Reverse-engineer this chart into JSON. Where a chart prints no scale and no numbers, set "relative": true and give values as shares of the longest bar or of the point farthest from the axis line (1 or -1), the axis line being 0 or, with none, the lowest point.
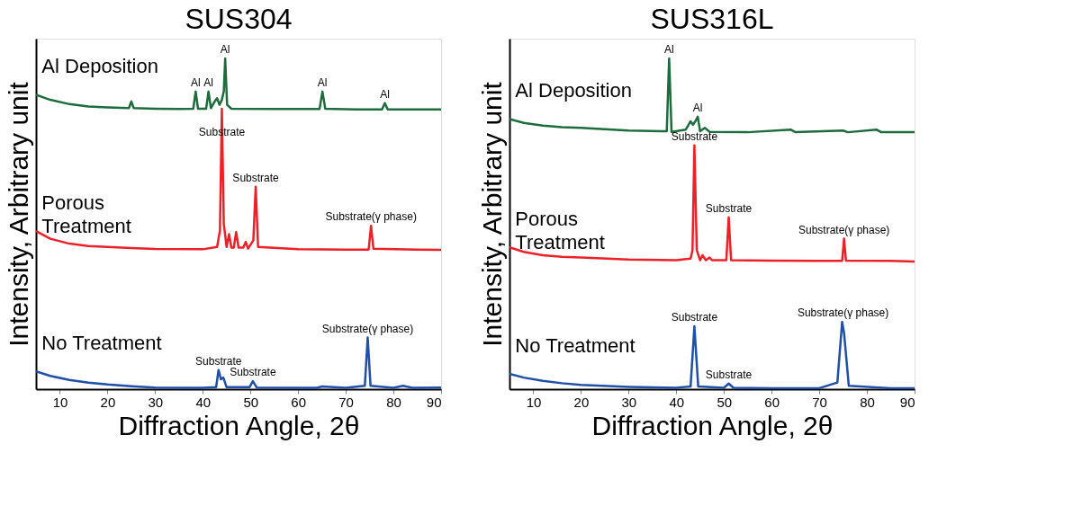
{
  "chart_data": [
    {
      "type": "line",
      "title": "SUS304",
      "xlabel": "Diffraction Angle, 2θ",
      "ylabel": "Intensity, Arbitrary unit",
      "relative": true,
      "xlim": [
        5,
        90
      ],
      "xticks": [
        10,
        20,
        30,
        40,
        50,
        60,
        70,
        80,
        90
      ],
      "grid": false,
      "legend": false,
      "marker": "none",
      "line_style": "solid",
      "series": [
        {
          "name": "Al Deposition",
          "color": "#1e6b3c",
          "x": [
            5,
            8,
            12,
            16,
            20,
            24.5,
            25,
            25.5,
            30,
            35,
            38,
            38.5,
            39,
            40.7,
            41.2,
            41.7,
            42.5,
            43,
            43.5,
            44,
            44.4,
            44.7,
            45.1,
            46,
            55,
            64.5,
            65.1,
            65.7,
            72,
            77.6,
            78.2,
            78.8,
            85,
            90
          ],
          "values": [
            0.89,
            0.875,
            0.862,
            0.855,
            0.852,
            0.85,
            0.87,
            0.85,
            0.848,
            0.847,
            0.848,
            0.9,
            0.848,
            0.848,
            0.9,
            0.85,
            0.87,
            0.88,
            0.86,
            0.875,
            0.9,
            1.0,
            0.86,
            0.848,
            0.847,
            0.847,
            0.9,
            0.848,
            0.846,
            0.846,
            0.865,
            0.846,
            0.846,
            0.846
          ]
        },
        {
          "name": "Porous\nTreatment",
          "color": "#ee2027",
          "x": [
            5,
            8,
            12,
            16,
            20,
            25,
            30,
            40,
            43,
            43.6,
            44,
            44.4,
            45,
            45.5,
            46,
            46.5,
            47,
            47.5,
            48.5,
            49,
            49.5,
            50.6,
            51.1,
            51.6,
            60,
            70,
            74.8,
            75.3,
            75.8,
            85,
            90
          ],
          "values": [
            0.478,
            0.455,
            0.44,
            0.433,
            0.43,
            0.427,
            0.424,
            0.423,
            0.43,
            0.48,
            0.848,
            0.5,
            0.43,
            0.469,
            0.428,
            0.428,
            0.475,
            0.428,
            0.428,
            0.445,
            0.425,
            0.45,
            0.612,
            0.43,
            0.423,
            0.422,
            0.422,
            0.494,
            0.425,
            0.422,
            0.421
          ]
        },
        {
          "name": "No Treatment",
          "color": "#1f4fa8",
          "x": [
            5,
            8,
            12,
            16,
            20,
            25,
            30,
            40,
            42.8,
            43.3,
            43.8,
            44.3,
            45,
            49.8,
            50.5,
            51.3,
            60,
            64,
            65,
            70,
            74,
            74.6,
            75.2,
            80,
            82,
            84,
            90
          ],
          "values": [
            0.054,
            0.04,
            0.028,
            0.02,
            0.014,
            0.009,
            0.005,
            0.004,
            0.006,
            0.058,
            0.03,
            0.035,
            0.006,
            0.006,
            0.024,
            0.005,
            0.004,
            0.004,
            0.008,
            0.004,
            0.01,
            0.156,
            0.01,
            0.004,
            0.01,
            0.004,
            0.005
          ]
        }
      ],
      "annotations": [
        {
          "text": "Al",
          "x": 38.5,
          "y": 0.9
        },
        {
          "text": "Al",
          "x": 41.2,
          "y": 0.9
        },
        {
          "text": "Al",
          "x": 44.7,
          "y": 1.0
        },
        {
          "text": "Al",
          "x": 65.1,
          "y": 0.9
        },
        {
          "text": "Al",
          "x": 78.2,
          "y": 0.865
        },
        {
          "text": "Substrate",
          "x": 44,
          "y": 0.75
        },
        {
          "text": "Substrate",
          "x": 51.1,
          "y": 0.612
        },
        {
          "text": "Substrate(γ phase)",
          "x": 75.3,
          "y": 0.494
        },
        {
          "text": "Substrate",
          "x": 43.3,
          "y": 0.058
        },
        {
          "text": "Substrate",
          "x": 50.5,
          "y": 0.024
        },
        {
          "text": "Substrate(γ phase)",
          "x": 74.6,
          "y": 0.156
        }
      ]
    },
    {
      "type": "line",
      "title": "SUS316L",
      "xlabel": "Diffraction Angle, 2θ",
      "ylabel": "Intensity, Arbitrary unit",
      "relative": true,
      "xlim": [
        5,
        90
      ],
      "xticks": [
        10,
        20,
        30,
        40,
        50,
        60,
        70,
        80,
        90
      ],
      "grid": false,
      "legend": false,
      "marker": "none",
      "line_style": "solid",
      "series": [
        {
          "name": "Al Deposition",
          "color": "#1e6b3c",
          "x": [
            5,
            8,
            12,
            16,
            20,
            30,
            37,
            38,
            38.5,
            39,
            42,
            43,
            43.5,
            44,
            44.5,
            45,
            46,
            47,
            55,
            64,
            65,
            75,
            76,
            82,
            83,
            90
          ],
          "values": [
            0.817,
            0.805,
            0.797,
            0.792,
            0.79,
            0.782,
            0.78,
            0.78,
            1.0,
            0.778,
            0.785,
            0.81,
            0.8,
            0.81,
            0.824,
            0.78,
            0.79,
            0.778,
            0.777,
            0.785,
            0.777,
            0.782,
            0.777,
            0.785,
            0.777,
            0.777
          ]
        },
        {
          "name": "Porous\nTreatment",
          "color": "#ee2027",
          "x": [
            5,
            8,
            12,
            16,
            20,
            30,
            40,
            43,
            43.4,
            43.8,
            44.3,
            45,
            45.5,
            46.2,
            47,
            47.5,
            50.5,
            51,
            51.5,
            60,
            70,
            74.8,
            75.2,
            75.6,
            85,
            90
          ],
          "values": [
            0.429,
            0.415,
            0.405,
            0.4,
            0.398,
            0.392,
            0.39,
            0.395,
            0.42,
            0.737,
            0.42,
            0.39,
            0.405,
            0.39,
            0.398,
            0.39,
            0.39,
            0.52,
            0.39,
            0.389,
            0.388,
            0.388,
            0.455,
            0.389,
            0.388,
            0.386
          ]
        },
        {
          "name": "No Treatment",
          "color": "#1f4fa8",
          "x": [
            5,
            8,
            12,
            16,
            20,
            30,
            40,
            43,
            43.8,
            44.6,
            50,
            51,
            52,
            60,
            70,
            73.8,
            74.8,
            75.2,
            76.2,
            85,
            90
          ],
          "values": [
            0.046,
            0.035,
            0.025,
            0.018,
            0.013,
            0.007,
            0.004,
            0.008,
            0.19,
            0.008,
            0.004,
            0.017,
            0.004,
            0.003,
            0.003,
            0.02,
            0.203,
            0.17,
            0.01,
            0.003,
            0.003
          ]
        }
      ],
      "annotations": [
        {
          "text": "Al",
          "x": 38.5,
          "y": 1.0
        },
        {
          "text": "Al",
          "x": 44.5,
          "y": 0.824
        },
        {
          "text": "Substrate",
          "x": 43.8,
          "y": 0.737
        },
        {
          "text": "Substrate",
          "x": 51,
          "y": 0.52
        },
        {
          "text": "Substrate(γ phase)",
          "x": 75.2,
          "y": 0.455
        },
        {
          "text": "Substrate",
          "x": 43.8,
          "y": 0.19
        },
        {
          "text": "Substrate",
          "x": 51,
          "y": 0.017
        },
        {
          "text": "Substrate(γ phase)",
          "x": 75,
          "y": 0.203
        }
      ]
    }
  ]
}
